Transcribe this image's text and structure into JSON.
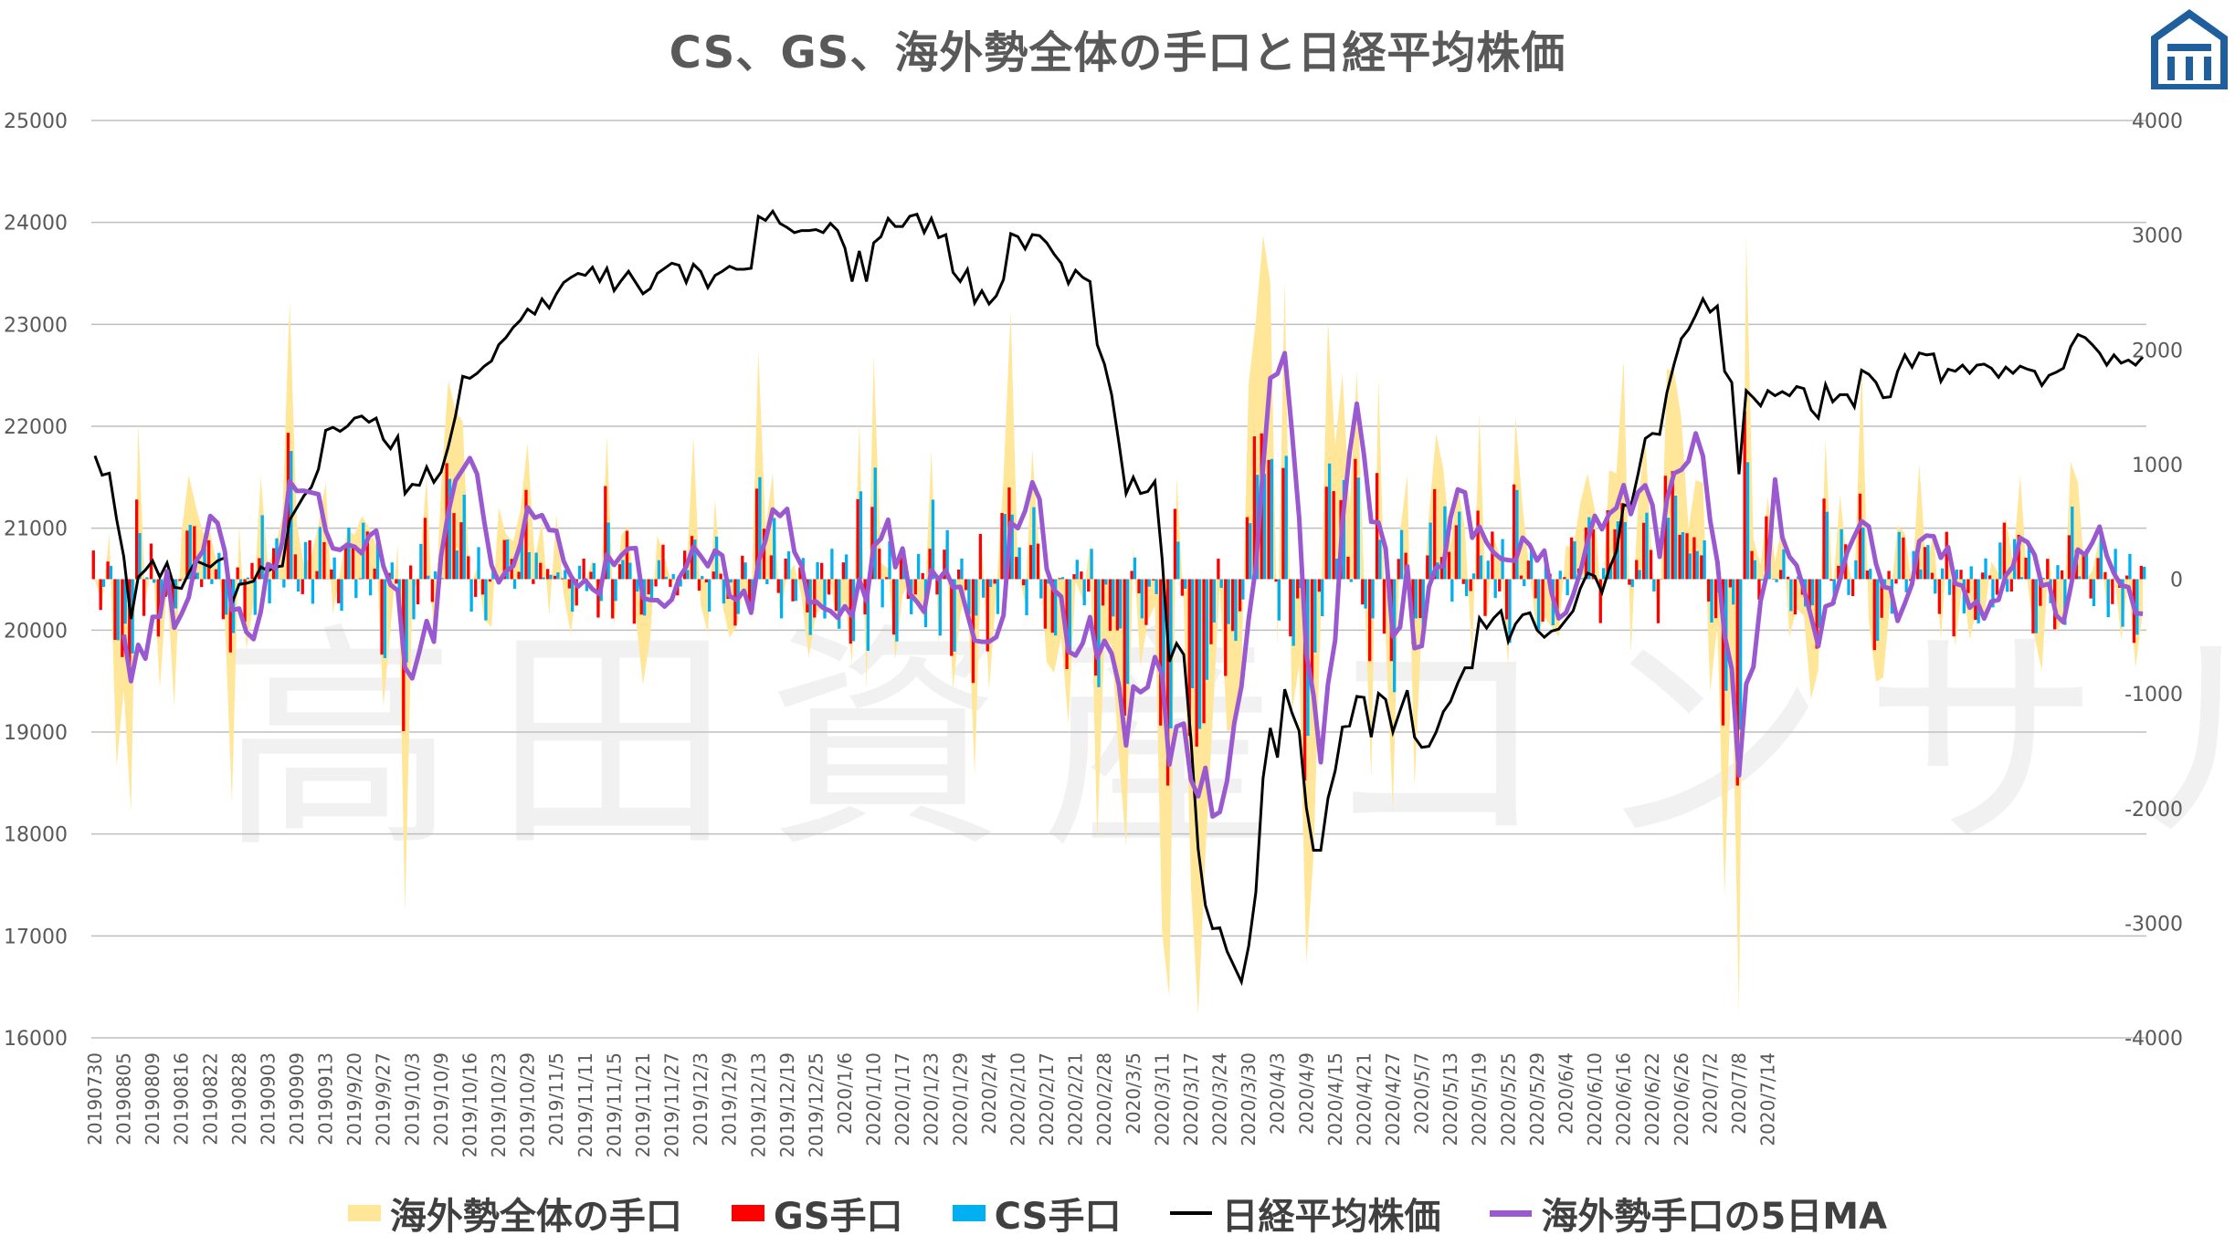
{
  "chart_data": {
    "type": "bar+area+line",
    "title": "CS、GS、海外勢全体の手口と日経平均株価",
    "watermark": "高田資産コンサル",
    "colors": {
      "overseas_total": "#FFE699",
      "gs": "#FF0000",
      "cs": "#00B0F0",
      "nikkei": "#000000",
      "ma5": "#9B59D0"
    },
    "left_axis": {
      "min": 16000,
      "max": 25000,
      "ticks": [
        16000,
        17000,
        18000,
        19000,
        20000,
        21000,
        22000,
        23000,
        24000,
        25000
      ]
    },
    "right_axis": {
      "min": -4000,
      "max": 4000,
      "ticks": [
        -4000,
        -3000,
        -2000,
        -1000,
        0,
        1000,
        2000,
        3000,
        4000
      ]
    },
    "x_tick_labels": [
      "20190730",
      "20190805",
      "20190809",
      "20190816",
      "20190822",
      "20190828",
      "20190903",
      "20190909",
      "20190913",
      "2019/9/20",
      "2019/9/27",
      "2019/10/3",
      "2019/10/9",
      "2019/10/16",
      "2019/10/23",
      "2019/10/29",
      "2019/11/5",
      "2019/11/11",
      "2019/11/15",
      "2019/11/21",
      "2019/11/27",
      "2019/12/3",
      "2019/12/9",
      "2019/12/13",
      "2019/12/19",
      "2019/12/25",
      "2020/1/6",
      "2020/1/10",
      "2020/1/17",
      "2020/1/23",
      "2020/1/29",
      "2020/2/4",
      "2020/2/10",
      "2020/2/17",
      "2020/2/21",
      "2020/2/28",
      "2020/3/5",
      "2020/3/11",
      "2020/3/17",
      "2020/3/24",
      "2020/3/30",
      "2020/4/3",
      "2020/4/9",
      "2020/4/15",
      "2020/4/21",
      "2020/4/27",
      "2020/5/7",
      "2020/5/13",
      "2020/5/19",
      "2020/5/25",
      "2020/5/29",
      "2020/6/4",
      "2020/6/10",
      "2020/6/16",
      "2020/6/22",
      "2020/6/26",
      "2020/7/2",
      "2020/7/8",
      "2020/7/14"
    ],
    "days_per_tick": 4,
    "series": [
      {
        "name": "日経平均株価",
        "axis": "left",
        "values": [
          21710,
          21520,
          21540,
          21090,
          20720,
          20110,
          20520,
          20590,
          20680,
          20520,
          20660,
          20420,
          20410,
          20560,
          20680,
          20650,
          20620,
          20680,
          20710,
          20260,
          20450,
          20460,
          20480,
          20620,
          20580,
          20620,
          20630,
          21080,
          21200,
          21320,
          21400,
          21580,
          21960,
          21990,
          21950,
          22000,
          22080,
          22100,
          22040,
          22080,
          21870,
          21780,
          21900,
          21340,
          21430,
          21420,
          21600,
          21450,
          21550,
          21800,
          22100,
          22490,
          22470,
          22520,
          22590,
          22640,
          22800,
          22870,
          22970,
          23040,
          23150,
          23100,
          23250,
          23160,
          23300,
          23410,
          23460,
          23500,
          23480,
          23560,
          23420,
          23550,
          23330,
          23430,
          23520,
          23410,
          23300,
          23350,
          23500,
          23550,
          23600,
          23580,
          23410,
          23590,
          23520,
          23360,
          23480,
          23520,
          23570,
          23540,
          23540,
          23550,
          24060,
          24020,
          24110,
          23990,
          23950,
          23900,
          23920,
          23920,
          23930,
          23900,
          23990,
          23920,
          23750,
          23420,
          23720,
          23420,
          23800,
          23860,
          24040,
          23960,
          23960,
          24060,
          24080,
          23900,
          24040,
          23850,
          23880,
          23510,
          23420,
          23540,
          23210,
          23330,
          23200,
          23280,
          23440,
          23890,
          23860,
          23740,
          23880,
          23870,
          23800,
          23690,
          23600,
          23400,
          23530,
          23460,
          23420,
          22800,
          22610,
          22310,
          21840,
          21340,
          21500,
          21340,
          21360,
          21460,
          20700,
          19690,
          19870,
          19760,
          18930,
          17850,
          17300,
          17070,
          17080,
          16850,
          16700,
          16550,
          16900,
          17430,
          18550,
          19040,
          18750,
          19420,
          19190,
          19010,
          18260,
          17840,
          17840,
          18350,
          18620,
          19050,
          19060,
          19350,
          19340,
          18950,
          19380,
          19320,
          19000,
          19210,
          19410,
          18950,
          18850,
          18860,
          19000,
          19200,
          19300,
          19480,
          19630,
          19630,
          20120,
          20020,
          20120,
          20190,
          19890,
          20060,
          20150,
          20170,
          20000,
          19930,
          19990,
          20010,
          20100,
          20190,
          20410,
          20560,
          20530,
          20370,
          20600,
          20770,
          21230,
          21210,
          21530,
          21880,
          21930,
          21920,
          22330,
          22610,
          22860,
          22950,
          23090,
          23250,
          23120,
          23180,
          22540,
          22430,
          21530,
          22350,
          22280,
          22200,
          22350,
          22300,
          22340,
          22300,
          22390,
          22370,
          22160,
          22080,
          22410,
          22240,
          22310,
          22310,
          22190,
          22550,
          22510,
          22430,
          22280,
          22290,
          22540,
          22700,
          22580,
          22720,
          22700,
          22710,
          22440,
          22560,
          22540,
          22600,
          22520,
          22600,
          22610,
          22570,
          22480,
          22580,
          22520,
          22590,
          22560,
          22540,
          22400,
          22500,
          22530,
          22570,
          22780,
          22900,
          22870,
          22800,
          22720,
          22600,
          22700,
          22620,
          22650,
          22600,
          22680
        ]
      },
      {
        "name": "海外勢全体の手口",
        "axis": "right",
        "note": "area"
      },
      {
        "name": "GS手口",
        "axis": "right",
        "note": "bars"
      },
      {
        "name": "CS手口",
        "axis": "right",
        "note": "bars"
      },
      {
        "name": "海外勢手口の5日MA",
        "axis": "right",
        "note": "line"
      }
    ]
  },
  "legend": {
    "overseas": "海外勢全体の手口",
    "gs": "GS手口",
    "cs": "CS手口",
    "nikkei": "日経平均株価",
    "ma": "海外勢手口の5日MA"
  },
  "logo_icon": "house-logo-icon"
}
